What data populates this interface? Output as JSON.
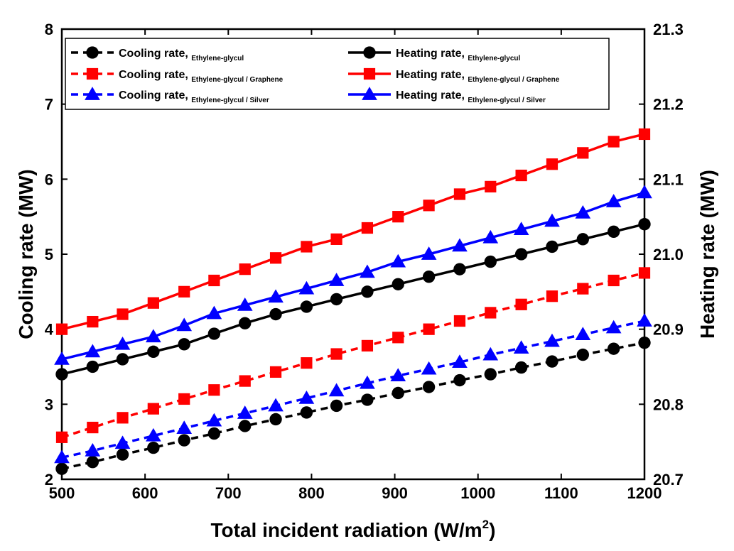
{
  "chart_data": {
    "type": "line",
    "xlabel": "Total incident radiation (W/m",
    "xlabel_sup": "2",
    "xlabel_end": ")",
    "ylabel_left": "Cooling rate (MW)",
    "ylabel_right": "Heating rate (MW)",
    "xlim": [
      500,
      1200
    ],
    "ylim_left": [
      2,
      8
    ],
    "ylim_right": [
      20.7,
      21.3
    ],
    "x_ticks": [
      "500",
      "600",
      "700",
      "800",
      "900",
      "1000",
      "1100",
      "1200"
    ],
    "y_left_ticks": [
      "2",
      "3",
      "4",
      "5",
      "6",
      "7",
      "8"
    ],
    "y_right_ticks": [
      "20.7",
      "20.8",
      "20.9",
      "21.0",
      "21.1",
      "21.2",
      "21.3"
    ],
    "x": [
      500,
      537,
      573,
      610,
      647,
      683,
      720,
      757,
      794,
      830,
      867,
      904,
      941,
      978,
      1015,
      1052,
      1089,
      1126,
      1163,
      1200
    ],
    "series": [
      {
        "key": "cool_eg",
        "name": "Cooling rate",
        "subscript": "Ethylene-glycul",
        "axis": "left",
        "color": "#000000",
        "style": "dashed",
        "marker": "circle",
        "values": [
          2.14,
          2.23,
          2.33,
          2.42,
          2.52,
          2.61,
          2.71,
          2.8,
          2.89,
          2.98,
          3.06,
          3.15,
          3.23,
          3.32,
          3.4,
          3.49,
          3.57,
          3.66,
          3.74,
          3.82
        ]
      },
      {
        "key": "cool_gr",
        "name": "Cooling rate",
        "subscript": "Ethylene-glycul / Graphene",
        "axis": "left",
        "color": "#ff0000",
        "style": "dashed",
        "marker": "square",
        "values": [
          2.56,
          2.69,
          2.82,
          2.94,
          3.07,
          3.19,
          3.31,
          3.43,
          3.55,
          3.67,
          3.78,
          3.89,
          4.0,
          4.11,
          4.22,
          4.33,
          4.44,
          4.54,
          4.65,
          4.75
        ]
      },
      {
        "key": "cool_ag",
        "name": "Cooling rate",
        "subscript": "Ethylene-glycul / Silver",
        "axis": "left",
        "color": "#0000ff",
        "style": "dashed",
        "marker": "triangle",
        "values": [
          2.29,
          2.38,
          2.48,
          2.58,
          2.68,
          2.78,
          2.88,
          2.98,
          3.08,
          3.18,
          3.28,
          3.38,
          3.47,
          3.56,
          3.66,
          3.75,
          3.84,
          3.93,
          4.02,
          4.11
        ]
      },
      {
        "key": "heat_eg",
        "name": "Heating rate",
        "subscript": "Ethylene-glycul",
        "axis": "right",
        "color": "#000000",
        "style": "solid",
        "marker": "circle",
        "values": [
          20.84,
          20.85,
          20.86,
          20.87,
          20.88,
          20.894,
          20.908,
          20.92,
          20.93,
          20.94,
          20.95,
          20.96,
          20.97,
          20.98,
          20.99,
          21.0,
          21.01,
          21.02,
          21.03,
          21.04
        ]
      },
      {
        "key": "heat_gr",
        "name": "Heating rate",
        "subscript": "Ethylene-glycul / Graphene",
        "axis": "right",
        "color": "#ff0000",
        "style": "solid",
        "marker": "square",
        "values": [
          20.9,
          20.91,
          20.92,
          20.935,
          20.95,
          20.965,
          20.98,
          20.995,
          21.01,
          21.02,
          21.035,
          21.05,
          21.065,
          21.08,
          21.09,
          21.105,
          21.12,
          21.135,
          21.15,
          21.16
        ]
      },
      {
        "key": "heat_ag",
        "name": "Heating rate",
        "subscript": "Ethylene-glycul / Silver",
        "axis": "right",
        "color": "#0000ff",
        "style": "solid",
        "marker": "triangle",
        "values": [
          20.86,
          20.87,
          20.88,
          20.89,
          20.905,
          20.921,
          20.932,
          20.943,
          20.954,
          20.965,
          20.976,
          20.99,
          21.0,
          21.011,
          21.022,
          21.033,
          21.044,
          21.055,
          21.07,
          21.082
        ]
      }
    ],
    "legend": {
      "placement": "top",
      "separator": ", ",
      "layout": [
        [
          "cool_eg",
          "heat_eg"
        ],
        [
          "cool_gr",
          "heat_gr"
        ],
        [
          "cool_ag",
          "heat_ag"
        ]
      ]
    }
  }
}
